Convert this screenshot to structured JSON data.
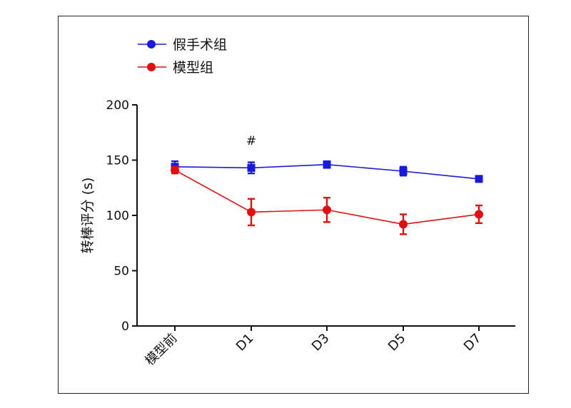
{
  "chart_data": {
    "type": "line",
    "categories": [
      "模型前",
      "D1",
      "D3",
      "D5",
      "D7"
    ],
    "ylabel": "转棒评分 (s)",
    "ylim": [
      0,
      200
    ],
    "yticks": [
      0,
      50,
      100,
      150,
      200
    ],
    "legend_position": "top-left",
    "grid": false,
    "series": [
      {
        "name": "假手术组",
        "color": "#1a1adb",
        "marker": "square",
        "values": [
          144,
          143,
          146,
          140,
          133
        ],
        "errors": [
          5,
          5,
          3,
          4,
          2
        ]
      },
      {
        "name": "模型组",
        "color": "#e01010",
        "marker": "circle",
        "values": [
          141,
          103,
          105,
          92,
          101
        ],
        "errors": [
          3,
          12,
          11,
          9,
          8
        ]
      }
    ],
    "annotations": [
      {
        "category": "D1",
        "text": "#"
      }
    ]
  }
}
